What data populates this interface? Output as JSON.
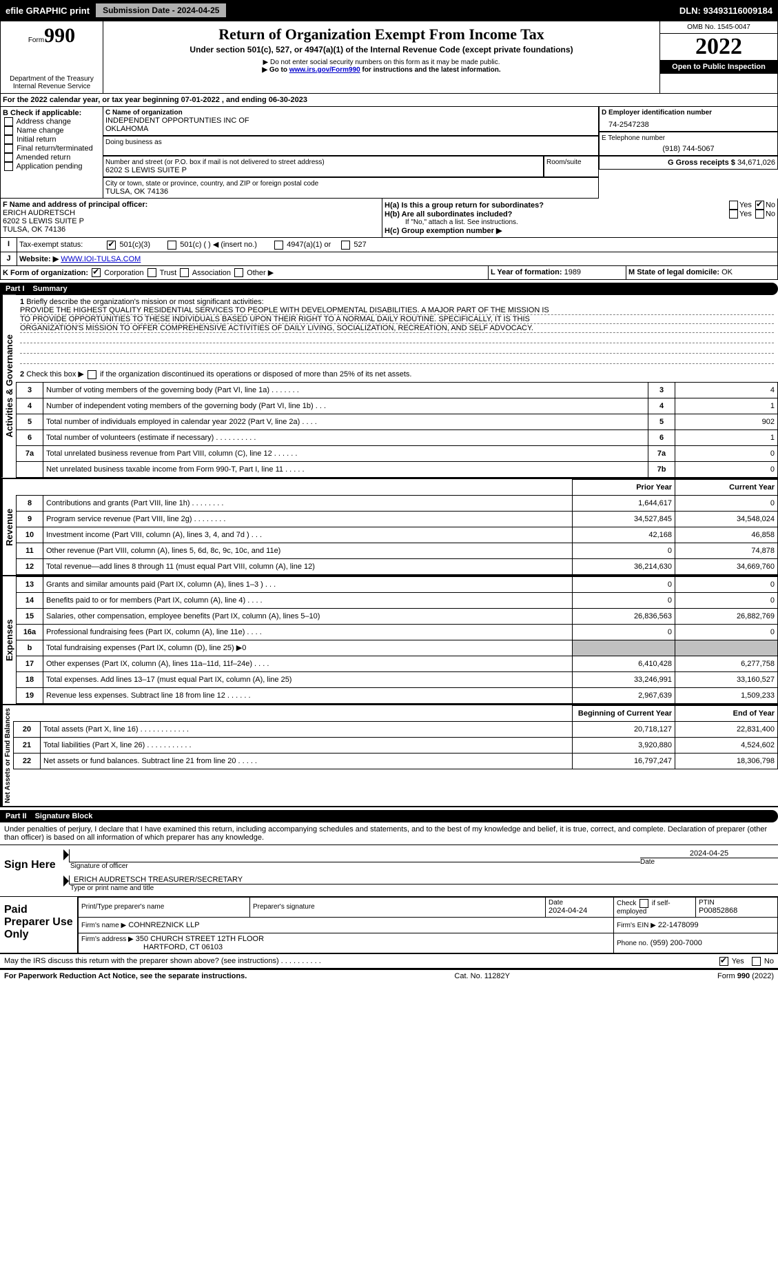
{
  "topbar": {
    "efile": "efile GRAPHIC print",
    "submission_btn": "Submission Date - 2024-04-25",
    "dln_label": "DLN: 93493116009184"
  },
  "header": {
    "form_word": "Form",
    "form_num": "990",
    "title": "Return of Organization Exempt From Income Tax",
    "subtitle": "Under section 501(c), 527, or 4947(a)(1) of the Internal Revenue Code (except private foundations)",
    "note1": "▶ Do not enter social security numbers on this form as it may be made public.",
    "note2_pre": "▶ Go to ",
    "note2_link": "www.irs.gov/Form990",
    "note2_post": " for instructions and the latest information.",
    "dept": "Department of the Treasury",
    "irs": "Internal Revenue Service",
    "omb": "OMB No. 1545-0047",
    "year": "2022",
    "open": "Open to Public Inspection"
  },
  "line_a": "For the 2022 calendar year, or tax year beginning 07-01-2022    , and ending 06-30-2023",
  "box_b": {
    "label": "B Check if applicable:",
    "items": [
      "Address change",
      "Name change",
      "Initial return",
      "Final return/terminated",
      "Amended return",
      "Application pending"
    ]
  },
  "box_c": {
    "label": "C Name of organization",
    "name1": "INDEPENDENT OPPORTUNTIES INC OF",
    "name2": "OKLAHOMA",
    "dba": "Doing business as",
    "addr_label": "Number and street (or P.O. box if mail is not delivered to street address)",
    "room": "Room/suite",
    "addr": "6202 S LEWIS SUITE P",
    "city_label": "City or town, state or province, country, and ZIP or foreign postal code",
    "city": "TULSA, OK  74136"
  },
  "box_d": {
    "label": "D Employer identification number",
    "val": "74-2547238"
  },
  "box_e": {
    "label": "E Telephone number",
    "val": "(918) 744-5067"
  },
  "box_g": {
    "label": "G Gross receipts $",
    "val": "34,671,026"
  },
  "box_f": {
    "label": "F  Name and address of principal officer:",
    "line1": "ERICH AUDRETSCH",
    "line2": "6202 S LEWIS SUITE P",
    "line3": "TULSA, OK  74136"
  },
  "box_h": {
    "a": "H(a)  Is this a group return for subordinates?",
    "b": "H(b)  Are all subordinates included?",
    "b_note": "If \"No,\" attach a list. See instructions.",
    "c": "H(c)  Group exemption number ▶",
    "yes": "Yes",
    "no": "No"
  },
  "box_i": {
    "label": "Tax-exempt status:",
    "o1": "501(c)(3)",
    "o2": "501(c) (   ) ◀ (insert no.)",
    "o3": "4947(a)(1) or",
    "o4": "527"
  },
  "box_j": {
    "label": "Website: ▶",
    "val": "WWW.IOI-TULSA.COM"
  },
  "box_k": {
    "label": "K Form of organization:",
    "o1": "Corporation",
    "o2": "Trust",
    "o3": "Association",
    "o4": "Other ▶"
  },
  "box_l": {
    "label": "L Year of formation:",
    "val": "1989"
  },
  "box_m": {
    "label": "M State of legal domicile:",
    "val": "OK"
  },
  "part1": {
    "num": "Part I",
    "title": "Summary"
  },
  "agov": {
    "label": "Activities & Governance",
    "l1": "Briefly describe the organization's mission or most significant activities:",
    "mission1": "PROVIDE THE HIGHEST QUALITY RESIDENTIAL SERVICES TO PEOPLE WITH DEVELOPMENTAL DISABILITIES. A MAJOR PART OF THE MISSION IS",
    "mission2": "TO PROVIDE OPPORTUNITIES TO THESE INDIVIDUALS BASED UPON THEIR RIGHT TO A NORMAL DAILY ROUTINE. SPECIFICALLY, IT IS THIS",
    "mission3": "ORGANIZATION'S MISSION TO OFFER COMPREHENSIVE ACTIVITIES OF DAILY LIVING, SOCIALIZATION, RECREATION, AND SELF ADVOCACY.",
    "l2": "Check this box ▶      if the organization discontinued its operations or disposed of more than 25% of its net assets.",
    "rows": [
      {
        "n": "3",
        "txt": "Number of voting members of the governing body (Part VI, line 1a)   .   .   .   .   .   .   .",
        "k": "3",
        "v": "4"
      },
      {
        "n": "4",
        "txt": "Number of independent voting members of the governing body (Part VI, line 1b)   .   .   .",
        "k": "4",
        "v": "1"
      },
      {
        "n": "5",
        "txt": "Total number of individuals employed in calendar year 2022 (Part V, line 2a)   .   .   .   .",
        "k": "5",
        "v": "902"
      },
      {
        "n": "6",
        "txt": "Total number of volunteers (estimate if necessary)   .   .   .   .   .   .   .   .   .   .",
        "k": "6",
        "v": "1"
      },
      {
        "n": "7a",
        "txt": "Total unrelated business revenue from Part VIII, column (C), line 12  .   .   .   .   .   .",
        "k": "7a",
        "v": "0"
      },
      {
        "n": "",
        "txt": "Net unrelated business taxable income from Form 990-T, Part I, line 11  .   .   .   .   .",
        "k": "7b",
        "v": "0"
      }
    ]
  },
  "rev": {
    "label": "Revenue",
    "hdr_prior": "Prior Year",
    "hdr_curr": "Current Year",
    "rows": [
      {
        "n": "8",
        "txt": "Contributions and grants (Part VIII, line 1h)  .   .   .   .   .   .   .   .",
        "p": "1,644,617",
        "c": "0"
      },
      {
        "n": "9",
        "txt": "Program service revenue (Part VIII, line 2g)  .   .   .   .   .   .   .   .",
        "p": "34,527,845",
        "c": "34,548,024"
      },
      {
        "n": "10",
        "txt": "Investment income (Part VIII, column (A), lines 3, 4, and 7d )   .   .   .",
        "p": "42,168",
        "c": "46,858"
      },
      {
        "n": "11",
        "txt": "Other revenue (Part VIII, column (A), lines 5, 6d, 8c, 9c, 10c, and 11e)",
        "p": "0",
        "c": "74,878"
      },
      {
        "n": "12",
        "txt": "Total revenue—add lines 8 through 11 (must equal Part VIII, column (A), line 12)",
        "p": "36,214,630",
        "c": "34,669,760"
      }
    ]
  },
  "exp": {
    "label": "Expenses",
    "rows": [
      {
        "n": "13",
        "txt": "Grants and similar amounts paid (Part IX, column (A), lines 1–3 )  .   .   .",
        "p": "0",
        "c": "0"
      },
      {
        "n": "14",
        "txt": "Benefits paid to or for members (Part IX, column (A), line 4)  .   .   .   .",
        "p": "0",
        "c": "0"
      },
      {
        "n": "15",
        "txt": "Salaries, other compensation, employee benefits (Part IX, column (A), lines 5–10)",
        "p": "26,836,563",
        "c": "26,882,769"
      },
      {
        "n": "16a",
        "txt": "Professional fundraising fees (Part IX, column (A), line 11e)  .   .   .   .",
        "p": "0",
        "c": "0"
      },
      {
        "n": "b",
        "txt": "Total fundraising expenses (Part IX, column (D), line 25) ▶0",
        "p": "",
        "c": ""
      },
      {
        "n": "17",
        "txt": "Other expenses (Part IX, column (A), lines 11a–11d, 11f–24e)  .   .   .   .",
        "p": "6,410,428",
        "c": "6,277,758"
      },
      {
        "n": "18",
        "txt": "Total expenses. Add lines 13–17 (must equal Part IX, column (A), line 25)",
        "p": "33,246,991",
        "c": "33,160,527"
      },
      {
        "n": "19",
        "txt": "Revenue less expenses. Subtract line 18 from line 12  .   .   .   .   .   .",
        "p": "2,967,639",
        "c": "1,509,233"
      }
    ]
  },
  "nafb": {
    "label": "Net Assets or Fund Balances",
    "hdr_prior": "Beginning of Current Year",
    "hdr_curr": "End of Year",
    "rows": [
      {
        "n": "20",
        "txt": "Total assets (Part X, line 16)  .   .   .   .   .   .   .   .   .   .   .   .",
        "p": "20,718,127",
        "c": "22,831,400"
      },
      {
        "n": "21",
        "txt": "Total liabilities (Part X, line 26)  .   .   .   .   .   .   .   .   .   .   .",
        "p": "3,920,880",
        "c": "4,524,602"
      },
      {
        "n": "22",
        "txt": "Net assets or fund balances. Subtract line 21 from line 20  .   .   .   .   .",
        "p": "16,797,247",
        "c": "18,306,798"
      }
    ]
  },
  "part2": {
    "num": "Part II",
    "title": "Signature Block"
  },
  "sig": {
    "decl": "Under penalties of perjury, I declare that I have examined this return, including accompanying schedules and statements, and to the best of my knowledge and belief, it is true, correct, and complete. Declaration of preparer (other than officer) is based on all information of which preparer has any knowledge.",
    "sign_here": "Sign Here",
    "sig_officer": "Signature of officer",
    "date": "Date",
    "date_val": "2024-04-25",
    "name_line": "ERICH AUDRETSCH  TREASURER/SECRETARY",
    "name_lbl": "Type or print name and title",
    "paid": "Paid Preparer Use Only",
    "pp_name_lbl": "Print/Type preparer's name",
    "pp_sig_lbl": "Preparer's signature",
    "pp_date": "2024-04-24",
    "pp_check": "Check        if self-employed",
    "ptin_lbl": "PTIN",
    "ptin": "P00852868",
    "firm_lbl": "Firm's name   ▶",
    "firm": "COHNREZNICK LLP",
    "ein_lbl": "Firm's EIN ▶",
    "ein": "22-1478099",
    "addr_lbl": "Firm's address ▶",
    "addr1": "350 CHURCH STREET 12TH FLOOR",
    "addr2": "HARTFORD, CT  06103",
    "phone_lbl": "Phone no.",
    "phone": "(959) 200-7000",
    "discuss": "May the IRS discuss this return with the preparer shown above? (see instructions)  .   .   .   .   .   .   .   .   .   ."
  },
  "footer": {
    "notice": "For Paperwork Reduction Act Notice, see the separate instructions.",
    "cat": "Cat. No. 11282Y",
    "form": "Form 990 (2022)"
  },
  "colors": {
    "link": "#0000cc"
  }
}
